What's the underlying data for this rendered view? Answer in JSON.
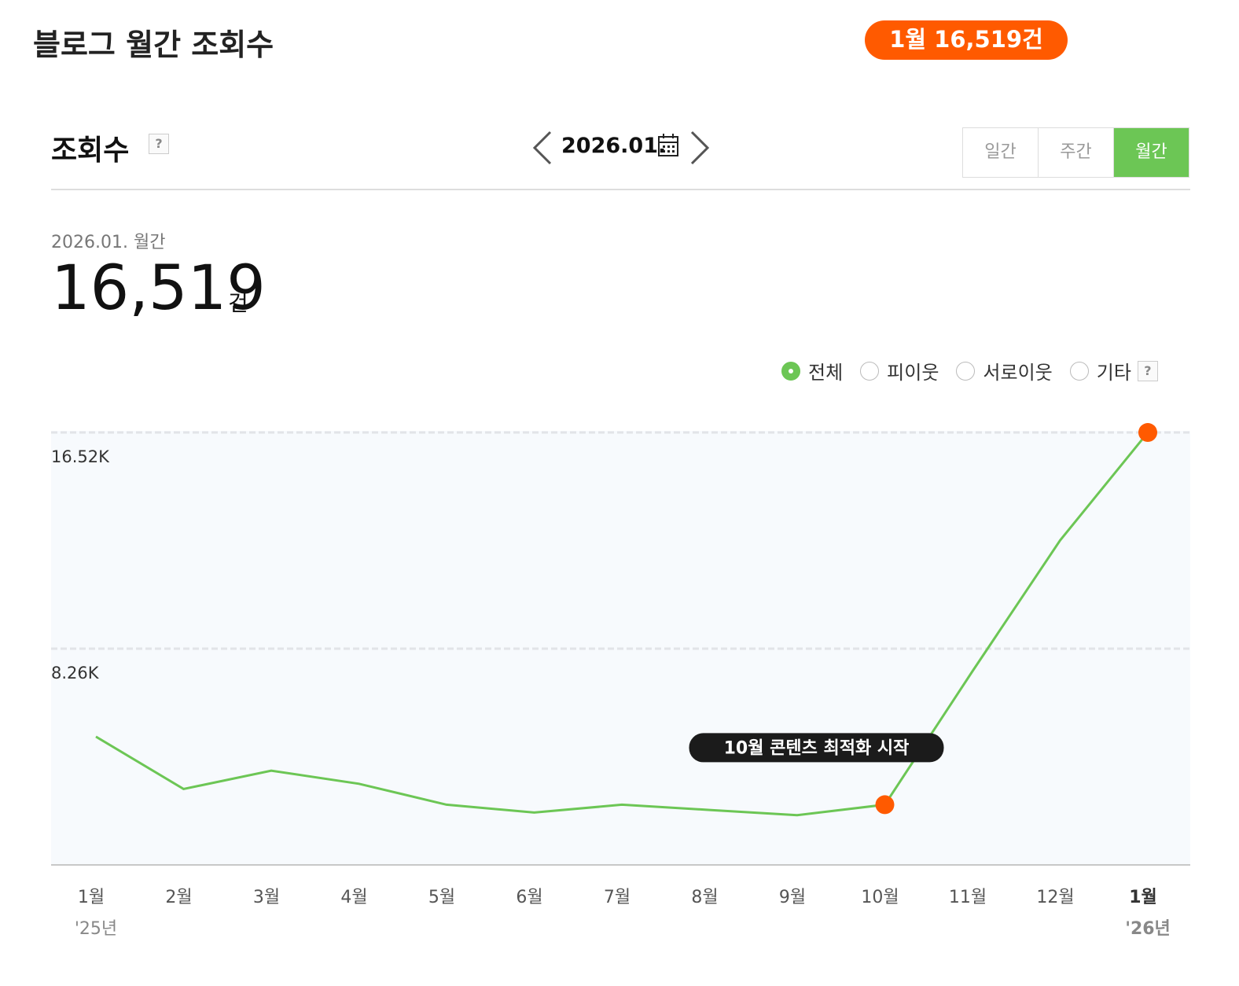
{
  "header": {
    "title": "블로그 월간 조회수",
    "badge": "1월 16,519건"
  },
  "section": {
    "title": "조회수",
    "help": "?",
    "date": "2026.01.",
    "tabs": [
      "일간",
      "주간",
      "월간"
    ],
    "active_tab": 2
  },
  "summary": {
    "period": "2026.01. 월간",
    "total": "16,519",
    "unit": "건"
  },
  "filters": {
    "options": [
      "전체",
      "피이웃",
      "서로이웃",
      "기타"
    ],
    "selected": 0,
    "help": "?"
  },
  "chart_data": {
    "type": "line",
    "categories": [
      "1월",
      "2월",
      "3월",
      "4월",
      "5월",
      "6월",
      "7월",
      "8월",
      "9월",
      "10월",
      "11월",
      "12월",
      "1월"
    ],
    "category_years": [
      "'25년",
      null,
      null,
      null,
      null,
      null,
      null,
      null,
      null,
      null,
      null,
      null,
      "'26년"
    ],
    "series": [
      {
        "name": "전체",
        "color": "#6cc655",
        "values": [
          4900,
          2900,
          3600,
          3100,
          2300,
          2000,
          2300,
          2100,
          1900,
          2300,
          7400,
          12400,
          16519
        ]
      }
    ],
    "ylim": [
      0,
      16520
    ],
    "yticks": [
      {
        "value": 8260,
        "label": "8.26K"
      },
      {
        "value": 16520,
        "label": "16.52K"
      }
    ],
    "grid": true,
    "highlight_points": [
      9,
      12
    ],
    "highlight_color": "#ff5a00",
    "annotation": {
      "text": "10월 콘텐츠 최적화 시작",
      "index": 9
    }
  }
}
